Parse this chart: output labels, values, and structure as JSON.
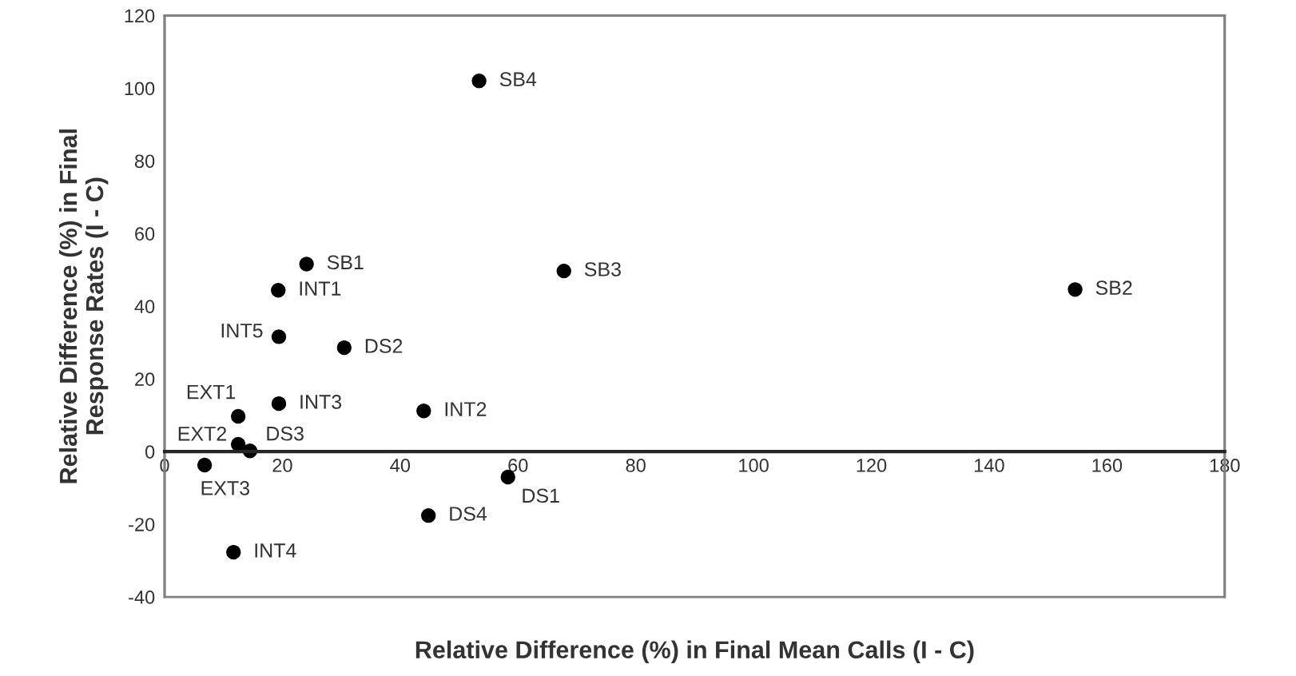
{
  "chart_data": {
    "type": "scatter",
    "xlabel": "Relative Difference (%) in Final Mean Calls (I - C)",
    "ylabel": "Relative Difference (%) in Final\nResponse Rates (I - C)",
    "x": [
      53.4,
      24.1,
      19.3,
      67.8,
      154.6,
      19.4,
      30.5,
      12.5,
      19.4,
      44.0,
      12.5,
      14.5,
      6.8,
      58.3,
      44.8,
      11.7
    ],
    "series": [
      {
        "color": "#000000",
        "values": [
          102,
          51.6,
          44.4,
          49.7,
          44.6,
          31.6,
          28.6,
          9.7,
          13.2,
          11.2,
          2.0,
          0.2,
          -3.7,
          -7.0,
          -17.6,
          -27.7
        ]
      }
    ],
    "annotations": [
      {
        "text": "SB4",
        "x": 53.4,
        "y": 102
      },
      {
        "text": "SB1",
        "x": 24.1,
        "y": 51.6
      },
      {
        "text": "INT1",
        "x": 19.3,
        "y": 44.4
      },
      {
        "text": "SB3",
        "x": 67.8,
        "y": 49.7
      },
      {
        "text": "SB2",
        "x": 154.6,
        "y": 44.6
      },
      {
        "text": "INT5",
        "x": 19.4,
        "y": 31.6
      },
      {
        "text": "DS2",
        "x": 30.5,
        "y": 28.6
      },
      {
        "text": "EXT1",
        "x": 12.5,
        "y": 9.7
      },
      {
        "text": "INT3",
        "x": 19.4,
        "y": 13.2
      },
      {
        "text": "INT2",
        "x": 44.0,
        "y": 11.2
      },
      {
        "text": "EXT2",
        "x": 12.5,
        "y": 2.0
      },
      {
        "text": "DS3",
        "x": 14.5,
        "y": 0.2
      },
      {
        "text": "EXT3",
        "x": 6.8,
        "y": -3.7
      },
      {
        "text": "DS1",
        "x": 58.3,
        "y": -7.0
      },
      {
        "text": "DS4",
        "x": 44.8,
        "y": -17.6
      },
      {
        "text": "INT4",
        "x": 11.7,
        "y": -27.7
      }
    ],
    "xlim": [
      0,
      180
    ],
    "xticks": [
      0,
      20,
      40,
      60,
      80,
      100,
      120,
      140,
      160,
      180
    ],
    "ylim": [
      -40,
      120
    ],
    "yticks": [
      -40,
      -20,
      0,
      20,
      40,
      60,
      80,
      100,
      120
    ],
    "marker": "circle",
    "grid": false,
    "legend": false
  }
}
